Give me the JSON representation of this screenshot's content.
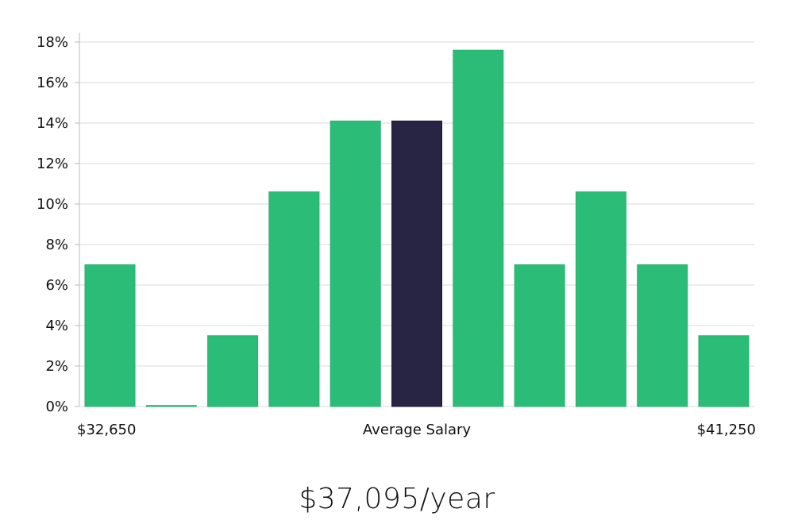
{
  "chart_data": {
    "type": "bar",
    "title": "",
    "ylabel": "",
    "xlabel": "Average Salary",
    "x_left_label": "$32,650",
    "x_right_label": "$41,250",
    "ylim": [
      0,
      18
    ],
    "yticks": [
      0,
      2,
      4,
      6,
      8,
      10,
      12,
      14,
      16,
      18
    ],
    "ytick_suffix": "%",
    "grid": true,
    "values": [
      7.0,
      0.05,
      3.5,
      10.6,
      14.1,
      14.1,
      17.6,
      7.0,
      10.6,
      7.0,
      3.5
    ],
    "highlight_index": 5,
    "colors": {
      "bar": "#2bbd77",
      "highlight": "#272444",
      "grid": "#d9d9d9",
      "axis": "#bbbbbb"
    }
  },
  "salary_text": "$37,095/year"
}
